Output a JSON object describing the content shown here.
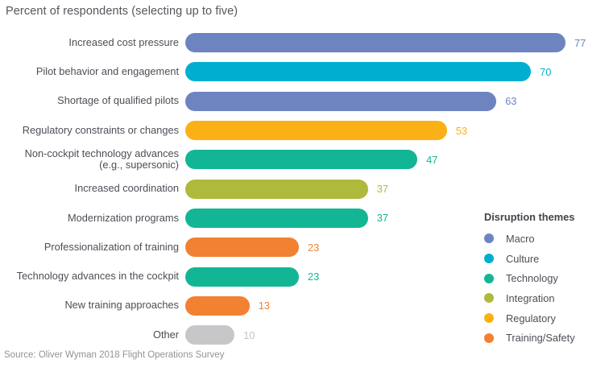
{
  "title": "Percent of respondents (selecting up to five)",
  "source": "Source: Oliver Wyman 2018 Flight Operations Survey",
  "legend": {
    "title": "Disruption themes",
    "items": [
      {
        "label": "Macro",
        "color": "#6d84c1"
      },
      {
        "label": "Culture",
        "color": "#00afd0"
      },
      {
        "label": "Technology",
        "color": "#13b694"
      },
      {
        "label": "Integration",
        "color": "#afb93c"
      },
      {
        "label": "Regulatory",
        "color": "#fbb116"
      },
      {
        "label": "Training/Safety",
        "color": "#f28131"
      }
    ]
  },
  "chart_data": {
    "type": "bar",
    "orientation": "horizontal",
    "title": "Percent of respondents (selecting up to five)",
    "unit": "percent",
    "xlim": [
      0,
      80
    ],
    "grid": false,
    "legend_position": "right",
    "categories": [
      "Increased cost pressure",
      "Pilot behavior and engagement",
      "Shortage of qualified pilots",
      "Regulatory constraints or changes",
      "Non-cockpit technology advances (e.g., supersonic)",
      "Increased coordination",
      "Modernization programs",
      "Professionalization of training",
      "Technology advances in the cockpit",
      "New training approaches",
      "Other"
    ],
    "values": [
      77,
      70,
      63,
      53,
      47,
      37,
      37,
      23,
      23,
      13,
      10
    ],
    "bars": [
      {
        "label": "Increased cost pressure",
        "value": 77,
        "theme": "Macro",
        "color": "#6d84c1"
      },
      {
        "label": "Pilot behavior and engagement",
        "value": 70,
        "theme": "Culture",
        "color": "#00afd0"
      },
      {
        "label": "Shortage of qualified pilots",
        "value": 63,
        "theme": "Macro",
        "color": "#6d84c1"
      },
      {
        "label": "Regulatory constraints or changes",
        "value": 53,
        "theme": "Regulatory",
        "color": "#fbb116"
      },
      {
        "label": "Non-cockpit technology advances (e.g., supersonic)",
        "value": 47,
        "theme": "Technology",
        "color": "#13b694"
      },
      {
        "label": "Increased coordination",
        "value": 37,
        "theme": "Integration",
        "color": "#afb93c"
      },
      {
        "label": "Modernization programs",
        "value": 37,
        "theme": "Technology",
        "color": "#13b694"
      },
      {
        "label": "Professionalization of training",
        "value": 23,
        "theme": "Training/Safety",
        "color": "#f28131"
      },
      {
        "label": "Technology advances in the cockpit",
        "value": 23,
        "theme": "Technology",
        "color": "#13b694"
      },
      {
        "label": "New training approaches",
        "value": 13,
        "theme": "Training/Safety",
        "color": "#f28131"
      },
      {
        "label": "Other",
        "value": 10,
        "theme": "Other",
        "color": "#c7c7c9"
      }
    ]
  }
}
